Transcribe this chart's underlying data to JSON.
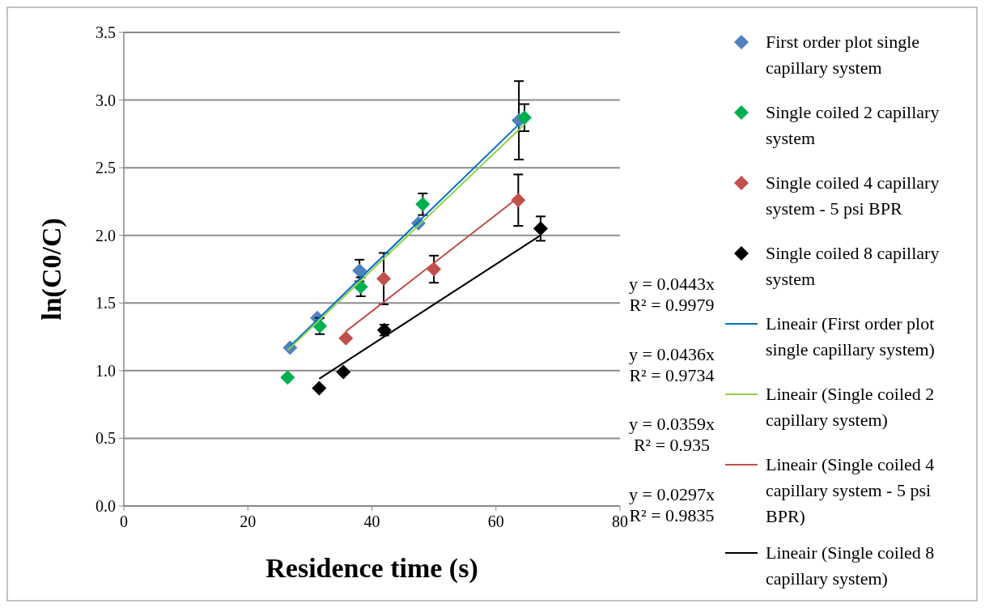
{
  "chart_data": {
    "type": "scatter",
    "xlabel": "Residence time (s)",
    "ylabel": "ln(C0/C)",
    "xlim": [
      0,
      80
    ],
    "xticks": [
      0,
      20,
      40,
      60,
      80
    ],
    "ylim": [
      0,
      3.5
    ],
    "yticks": [
      {
        "value": 0,
        "label": "0.0"
      },
      {
        "value": 0.5,
        "label": "0.5"
      },
      {
        "value": 1,
        "label": "1.0"
      },
      {
        "value": 1.5,
        "label": "1.5"
      },
      {
        "value": 2,
        "label": "2.0"
      },
      {
        "value": 2.5,
        "label": "2.5"
      },
      {
        "value": 3,
        "label": "3.0"
      },
      {
        "value": 3.5,
        "label": "3.5"
      }
    ],
    "grid": "y",
    "legend": "right",
    "marker": "diamond",
    "series": [
      {
        "name": "First order plot single capillary system",
        "color": "#4f81bd",
        "x": [
          26.8,
          31.2,
          38.0,
          47.5,
          63.7
        ],
        "values": [
          1.17,
          1.39,
          1.74,
          2.09,
          2.85
        ],
        "errors": [
          null,
          null,
          0.08,
          null,
          0.29
        ]
      },
      {
        "name": "Single coiled 2 capillary system",
        "color": "#00b050",
        "x": [
          26.4,
          31.6,
          38.2,
          48.2,
          64.6
        ],
        "values": [
          0.95,
          1.33,
          1.62,
          2.23,
          2.87
        ],
        "errors": [
          null,
          0.06,
          0.07,
          0.08,
          0.1
        ]
      },
      {
        "name": "Single coiled 4 capillary system - 5 psi BPR",
        "color": "#c0504d",
        "x": [
          35.8,
          41.9,
          50.0,
          63.6
        ],
        "values": [
          1.24,
          1.68,
          1.75,
          2.26
        ],
        "errors": [
          null,
          0.19,
          0.1,
          0.19
        ]
      },
      {
        "name": "Single coiled 8 capillary system",
        "color": "#000000",
        "x": [
          31.5,
          35.4,
          42.0,
          67.2
        ],
        "values": [
          0.87,
          0.99,
          1.3,
          2.05
        ],
        "errors": [
          null,
          null,
          0.04,
          0.09
        ]
      },
      {
        "name": "Lineair (First order plot single capillary system)",
        "type": "line",
        "marker": "none",
        "color": "#0070c0",
        "x": [
          26.8,
          63.7
        ],
        "values": [
          1.18,
          2.82
        ]
      },
      {
        "name": "Lineair (Single coiled 2 capillary system)",
        "type": "line",
        "marker": "none",
        "color": "#92d050",
        "x": [
          26.4,
          64.6
        ],
        "values": [
          1.15,
          2.82
        ]
      },
      {
        "name": "Lineair (Single coiled 4 capillary system - 5 psi BPR)",
        "type": "line",
        "marker": "none",
        "color": "#c0504d",
        "x": [
          35.8,
          63.6
        ],
        "values": [
          1.29,
          2.28
        ]
      },
      {
        "name": "Lineair (Single coiled 8 capillary system)",
        "type": "line",
        "marker": "none",
        "color": "#000000",
        "x": [
          31.5,
          67.2
        ],
        "values": [
          0.94,
          2.0
        ]
      }
    ],
    "annotations": [
      "y = 0.0443x\nR² = 0.9979",
      "y = 0.0436x\nR² = 0.9734",
      "y = 0.0359x\nR² = 0.935",
      "y = 0.0297x\nR² = 0.9835"
    ]
  }
}
